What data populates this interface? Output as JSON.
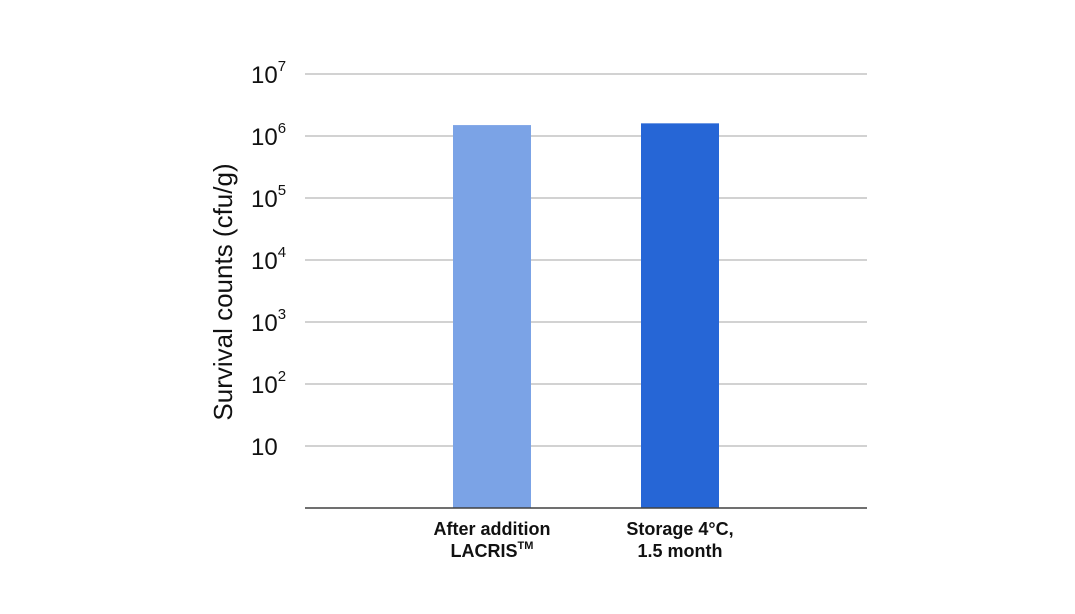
{
  "chart_data": {
    "type": "bar",
    "scale": "log",
    "ylabel": "Survival counts (cfu/g)",
    "ylim": [
      1,
      10000000
    ],
    "grid": true,
    "yticks": [
      {
        "base": "10",
        "exp": "7",
        "value": 10000000
      },
      {
        "base": "10",
        "exp": "6",
        "value": 1000000
      },
      {
        "base": "10",
        "exp": "5",
        "value": 100000
      },
      {
        "base": "10",
        "exp": "4",
        "value": 10000
      },
      {
        "base": "10",
        "exp": "3",
        "value": 1000
      },
      {
        "base": "10",
        "exp": "2",
        "value": 100
      },
      {
        "base": "10",
        "exp": "",
        "value": 10
      }
    ],
    "categories": [
      {
        "line1": "After addition",
        "line2": "LACRIS",
        "line2_sup": "TM"
      },
      {
        "line1": "Storage 4°C,",
        "line2": "1.5 month",
        "line2_sup": ""
      }
    ],
    "values": [
      1500000,
      1600000
    ],
    "colors": [
      "#7ba3e6",
      "#2666d6"
    ]
  }
}
